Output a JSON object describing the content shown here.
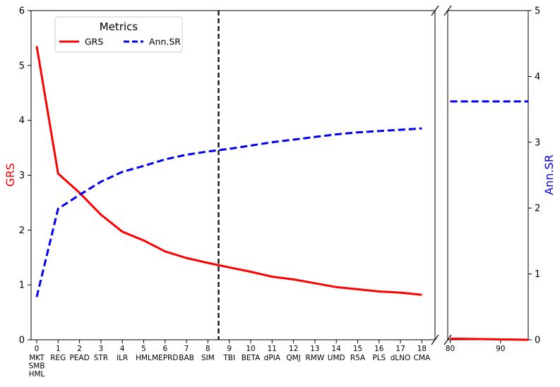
{
  "chart_data": {
    "type": "line",
    "legend": {
      "title": "Metrics",
      "placement": "top-left",
      "entries": [
        {
          "label": "GRS",
          "color": "#ff0000",
          "style": "solid"
        },
        {
          "label": "Ann.SR",
          "color": "#0000ee",
          "style": "dashed"
        }
      ]
    },
    "ylabel_left": "GRS",
    "ylabel_right": "Ann.SR",
    "ylabel_left_color": "#ff0000",
    "ylabel_right_color": "#0000ee",
    "ylim_left": [
      0,
      6
    ],
    "ylim_right": [
      0,
      5
    ],
    "yticks_left": [
      "0",
      "1",
      "2",
      "3",
      "4",
      "5",
      "6"
    ],
    "yticks_right": [
      "0",
      "1",
      "2",
      "3",
      "4",
      "5"
    ],
    "x": [
      0,
      1,
      2,
      3,
      4,
      5,
      6,
      7,
      8,
      9,
      10,
      11,
      12,
      13,
      14,
      15,
      16,
      17,
      18
    ],
    "xticks": [
      "0",
      "1",
      "2",
      "3",
      "4",
      "5",
      "6",
      "7",
      "8",
      "9",
      "10",
      "11",
      "12",
      "13",
      "14",
      "15",
      "16",
      "17",
      "18"
    ],
    "categories": [
      [
        "MKT",
        "SMB",
        "HML"
      ],
      [
        "REG"
      ],
      [
        "PEAD"
      ],
      [
        "STR"
      ],
      [
        "ILR"
      ],
      [
        "HML"
      ],
      [
        "MEPRD"
      ],
      [
        "BAB"
      ],
      [
        "SIM"
      ],
      [
        "TBI"
      ],
      [
        "BETA"
      ],
      [
        "dPIA"
      ],
      [
        "QMJ"
      ],
      [
        "RMW"
      ],
      [
        "UMD"
      ],
      [
        "R5A"
      ],
      [
        "PLS"
      ],
      [
        "dLNO"
      ],
      [
        "CMA"
      ]
    ],
    "series": [
      {
        "name": "GRS",
        "axis": "left",
        "color": "#ff0000",
        "style": "solid",
        "values": [
          5.35,
          3.03,
          2.68,
          2.28,
          1.97,
          1.81,
          1.61,
          1.49,
          1.4,
          1.32,
          1.24,
          1.15,
          1.1,
          1.03,
          0.96,
          0.92,
          0.88,
          0.86,
          0.82
        ]
      },
      {
        "name": "Ann.SR",
        "axis": "right",
        "color": "#0000ee",
        "style": "dashed",
        "values": [
          0.65,
          1.99,
          2.2,
          2.4,
          2.55,
          2.64,
          2.74,
          2.81,
          2.86,
          2.9,
          2.95,
          3.0,
          3.04,
          3.08,
          3.12,
          3.15,
          3.17,
          3.19,
          3.21
        ]
      }
    ],
    "vertical_line_x": 8.5,
    "right_panel": {
      "xlim": [
        79.5,
        95.5
      ],
      "xticks": [
        "80",
        "90"
      ],
      "series": [
        {
          "name": "GRS",
          "axis": "left",
          "color": "#ff0000",
          "style": "solid",
          "x": [
            80,
            95.5
          ],
          "values": [
            0.02,
            0.0
          ]
        },
        {
          "name": "Ann.SR",
          "axis": "right",
          "color": "#0000ee",
          "style": "dashed",
          "x": [
            80,
            95.5
          ],
          "values": [
            3.62,
            3.62
          ]
        }
      ]
    }
  }
}
